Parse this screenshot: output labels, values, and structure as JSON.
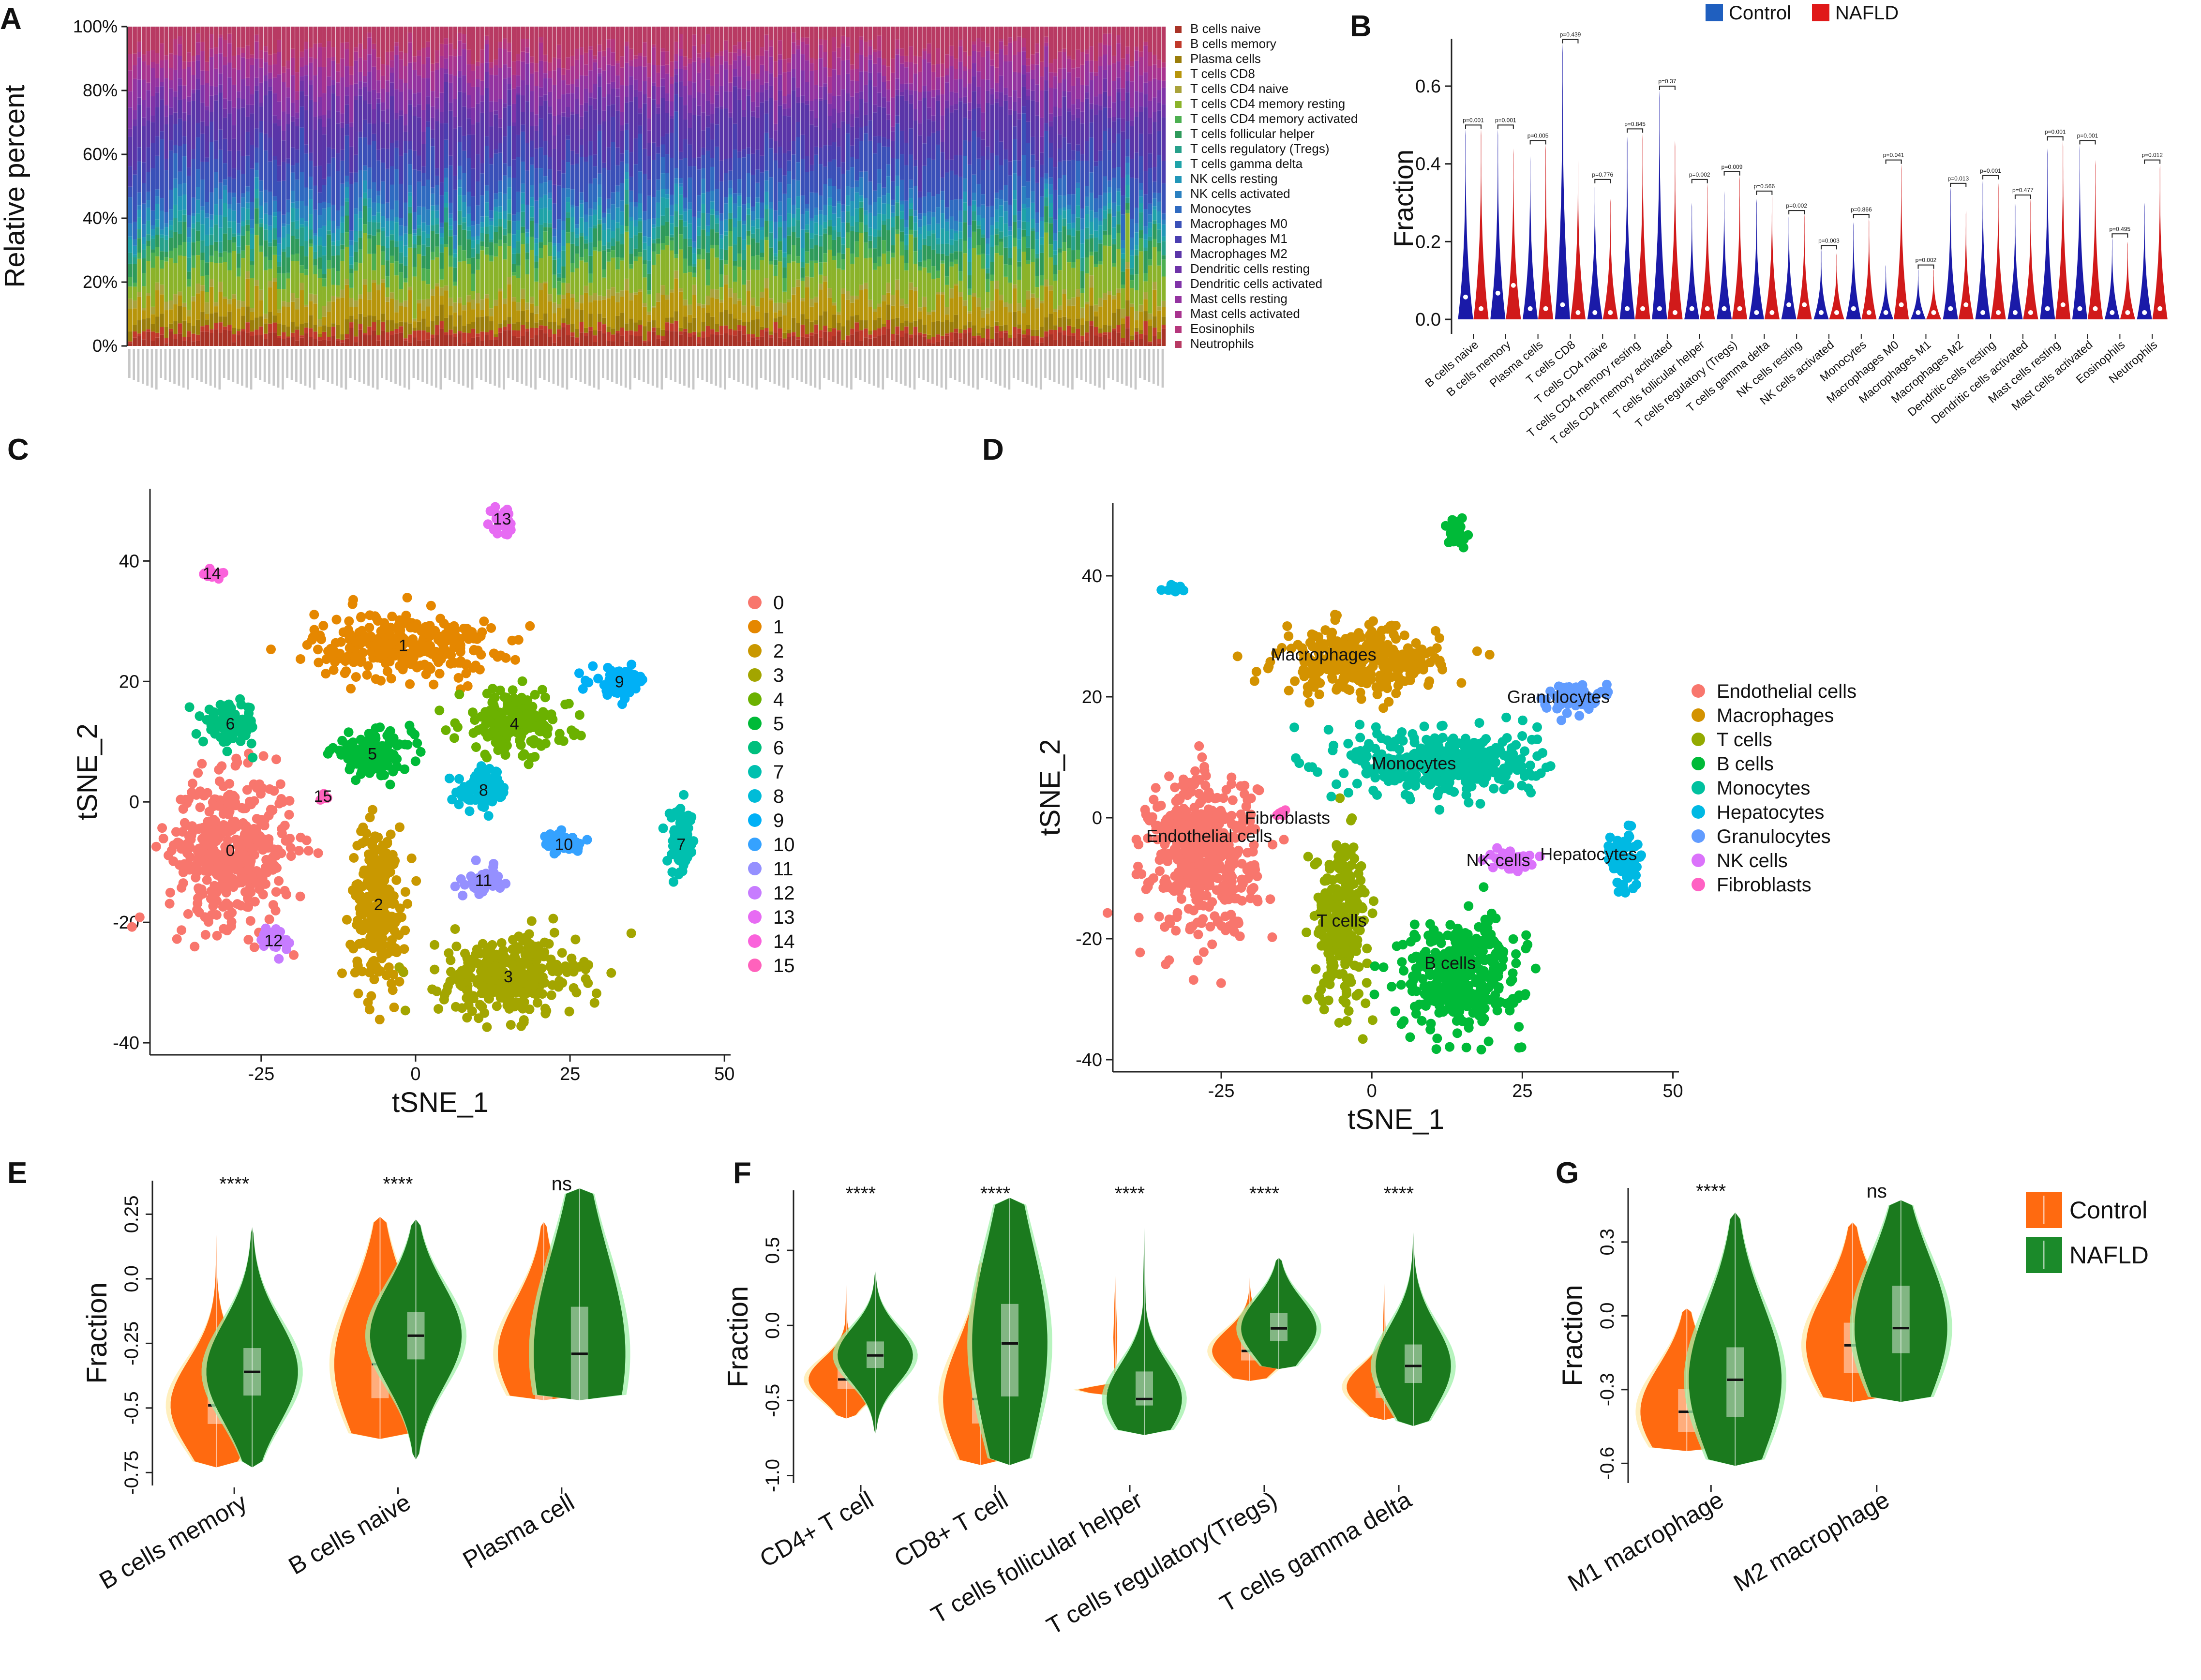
{
  "chart_data": [
    {
      "panel": "A",
      "type": "bar",
      "subtype": "stacked-100",
      "ylabel": "Relative percent",
      "yticks": [
        "0%",
        "20%",
        "40%",
        "60%",
        "80%",
        "100%"
      ],
      "ylim": [
        0,
        100
      ],
      "n_samples": 230,
      "legend": [
        {
          "name": "B cells naive",
          "color": "#a93226",
          "mean": 3
        },
        {
          "name": "B cells memory",
          "color": "#c0392b",
          "mean": 2
        },
        {
          "name": "Plasma cells",
          "color": "#9a7d0a",
          "mean": 3
        },
        {
          "name": "T cells CD8",
          "color": "#b7950b",
          "mean": 6
        },
        {
          "name": "T cells CD4 naive",
          "color": "#a9a23a",
          "mean": 2
        },
        {
          "name": "T cells CD4 memory resting",
          "color": "#8bb32a",
          "mean": 9
        },
        {
          "name": "T cells CD4 memory activated",
          "color": "#4caf50",
          "mean": 3
        },
        {
          "name": "T cells follicular helper",
          "color": "#2e9a5a",
          "mean": 4
        },
        {
          "name": "T cells regulatory (Tregs)",
          "color": "#26a08a",
          "mean": 3
        },
        {
          "name": "T cells gamma delta",
          "color": "#1fa3a8",
          "mean": 3
        },
        {
          "name": "NK cells resting",
          "color": "#2196b8",
          "mean": 3
        },
        {
          "name": "NK cells activated",
          "color": "#2a80c0",
          "mean": 3
        },
        {
          "name": "Monocytes",
          "color": "#2f6ac0",
          "mean": 5
        },
        {
          "name": "Macrophages M0",
          "color": "#3a50b8",
          "mean": 9
        },
        {
          "name": "Macrophages M1",
          "color": "#4a3eb0",
          "mean": 5
        },
        {
          "name": "Macrophages M2",
          "color": "#5a35a8",
          "mean": 10
        },
        {
          "name": "Dendritic cells resting",
          "color": "#6e33a8",
          "mean": 3
        },
        {
          "name": "Dendritic cells activated",
          "color": "#8033a8",
          "mean": 4
        },
        {
          "name": "Mast cells resting",
          "color": "#9433a0",
          "mean": 6
        },
        {
          "name": "Mast cells activated",
          "color": "#a8338f",
          "mean": 4
        },
        {
          "name": "Eosinophils",
          "color": "#b5367c",
          "mean": 3
        },
        {
          "name": "Neutrophils",
          "color": "#b83a63",
          "mean": 7
        }
      ]
    },
    {
      "panel": "B",
      "type": "violin",
      "ylabel": "Fraction",
      "ylim": [
        0,
        0.7
      ],
      "yticks": [
        "0.0",
        "0.2",
        "0.4",
        "0.6"
      ],
      "legend": [
        {
          "name": "Control",
          "color": "#1f5fbf"
        },
        {
          "name": "NAFLD",
          "color": "#e01919"
        }
      ],
      "categories": [
        "B cells naive",
        "B cells memory",
        "Plasma cells",
        "T cells CD8",
        "T cells CD4 naive",
        "T cells CD4 memory resting",
        "T cells CD4 memory activated",
        "T cells follicular helper",
        "T cells regulatory (Tregs)",
        "T cells gamma delta",
        "NK cells resting",
        "NK cells activated",
        "Monocytes",
        "Macrophages M0",
        "Macrophages M1",
        "Macrophages M2",
        "Dendritic cells resting",
        "Dendritic cells activated",
        "Mast cells resting",
        "Mast cells activated",
        "Eosinophils",
        "Neutrophils"
      ],
      "pvalues": [
        "p=0.001",
        "p=0.001",
        "p=0.005",
        "p=0.439",
        "p=0.776",
        "p=0.845",
        "p=0.37",
        "p=0.002",
        "p=0.009",
        "p=0.566",
        "p=0.002",
        "p=0.003",
        "p=0.866",
        "p=0.041",
        "p=0.002",
        "p=0.013",
        "p=0.001",
        "p=0.477",
        "p=0.001",
        "p=0.001",
        "p=0.495",
        "p=0.012"
      ],
      "control_max": [
        0.49,
        0.49,
        0.42,
        0.71,
        0.35,
        0.47,
        0.59,
        0.3,
        0.33,
        0.31,
        0.27,
        0.18,
        0.25,
        0.14,
        0.13,
        0.34,
        0.36,
        0.3,
        0.44,
        0.45,
        0.21,
        0.3
      ],
      "nafld_max": [
        0.49,
        0.44,
        0.45,
        0.41,
        0.31,
        0.48,
        0.46,
        0.35,
        0.37,
        0.32,
        0.27,
        0.17,
        0.26,
        0.4,
        0.13,
        0.28,
        0.35,
        0.31,
        0.46,
        0.41,
        0.2,
        0.4
      ],
      "control_median": [
        0.05,
        0.06,
        0.02,
        0.03,
        0.01,
        0.02,
        0.02,
        0.02,
        0.02,
        0.01,
        0.03,
        0.01,
        0.02,
        0.01,
        0.01,
        0.02,
        0.01,
        0.01,
        0.02,
        0.02,
        0.01,
        0.01
      ],
      "nafld_median": [
        0.02,
        0.08,
        0.02,
        0.01,
        0.01,
        0.02,
        0.01,
        0.02,
        0.02,
        0.01,
        0.03,
        0.01,
        0.01,
        0.03,
        0.01,
        0.03,
        0.01,
        0.01,
        0.03,
        0.02,
        0.01,
        0.02
      ]
    },
    {
      "panel": "C",
      "type": "scatter",
      "xlabel": "tSNE_1",
      "ylabel": "tSNE_2",
      "xlim": [
        -43,
        51
      ],
      "ylim": [
        -42,
        52
      ],
      "xticks": [
        -25,
        0,
        25,
        50
      ],
      "yticks": [
        -40,
        -20,
        0,
        20,
        40
      ],
      "xtick_labels": [
        "-25",
        "0",
        "25",
        "50"
      ],
      "ytick_labels": [
        "-40",
        "-20",
        "0",
        "20",
        "40"
      ],
      "clusters": [
        {
          "label": "0",
          "color": "#F8766D",
          "x": -30,
          "y": -8,
          "sx": 9,
          "sy": 11,
          "n": 420
        },
        {
          "label": "1",
          "color": "#E58700",
          "x": -2,
          "y": 26,
          "sx": 13,
          "sy": 5,
          "n": 300
        },
        {
          "label": "2",
          "color": "#C99800",
          "x": -6,
          "y": -17,
          "sx": 4,
          "sy": 12,
          "n": 240
        },
        {
          "label": "3",
          "color": "#A3A500",
          "x": 15,
          "y": -29,
          "sx": 10,
          "sy": 6,
          "n": 320
        },
        {
          "label": "4",
          "color": "#6BB100",
          "x": 16,
          "y": 13,
          "sx": 8,
          "sy": 5,
          "n": 180
        },
        {
          "label": "5",
          "color": "#00BA38",
          "x": -7,
          "y": 8,
          "sx": 6,
          "sy": 3,
          "n": 130
        },
        {
          "label": "6",
          "color": "#00BF7D",
          "x": -30,
          "y": 13,
          "sx": 4,
          "sy": 3,
          "n": 90
        },
        {
          "label": "7",
          "color": "#00C0AF",
          "x": 43,
          "y": -7,
          "sx": 2,
          "sy": 5,
          "n": 70
        },
        {
          "label": "8",
          "color": "#00BCD8",
          "x": 11,
          "y": 2,
          "sx": 4,
          "sy": 3,
          "n": 80
        },
        {
          "label": "9",
          "color": "#00B0F6",
          "x": 33,
          "y": 20,
          "sx": 4,
          "sy": 2,
          "n": 70
        },
        {
          "label": "10",
          "color": "#35A2FF",
          "x": 24,
          "y": -7,
          "sx": 3,
          "sy": 1.5,
          "n": 45
        },
        {
          "label": "11",
          "color": "#9590FF",
          "x": 11,
          "y": -13,
          "sx": 2.5,
          "sy": 2,
          "n": 40
        },
        {
          "label": "12",
          "color": "#C77CFF",
          "x": -23,
          "y": -23,
          "sx": 2,
          "sy": 2,
          "n": 28
        },
        {
          "label": "13",
          "color": "#E76BF3",
          "x": 14,
          "y": 47,
          "sx": 1.5,
          "sy": 2,
          "n": 28
        },
        {
          "label": "14",
          "color": "#FA62DB",
          "x": -33,
          "y": 38,
          "sx": 2,
          "sy": 0.5,
          "n": 18
        },
        {
          "label": "15",
          "color": "#FF62BC",
          "x": -15,
          "y": 1,
          "sx": 0.8,
          "sy": 0.8,
          "n": 5
        }
      ]
    },
    {
      "panel": "D",
      "type": "scatter",
      "xlabel": "tSNE_1",
      "ylabel": "tSNE_2",
      "xlim": [
        -43,
        51
      ],
      "ylim": [
        -42,
        52
      ],
      "xticks": [
        -25,
        0,
        25,
        50
      ],
      "yticks": [
        -40,
        -20,
        0,
        20,
        40
      ],
      "xtick_labels": [
        "-25",
        "0",
        "25",
        "50"
      ],
      "ytick_labels": [
        "-40",
        "-20",
        "0",
        "20",
        "40"
      ],
      "clusters": [
        {
          "label": "Endothelial cells",
          "color": "#F8766D",
          "x": -28,
          "y": -6,
          "sx": 8,
          "sy": 12,
          "n": 460
        },
        {
          "label": "Macrophages",
          "color": "#D39200",
          "x": -2,
          "y": 26,
          "sx": 12,
          "sy": 5,
          "n": 300
        },
        {
          "label": "T cells",
          "color": "#93AA00",
          "x": -5,
          "y": -17,
          "sx": 4,
          "sy": 12,
          "n": 240
        },
        {
          "label": "B cells",
          "color": "#00BA38",
          "x": 15,
          "y": -26,
          "sx": 9,
          "sy": 8,
          "n": 360
        },
        {
          "label": "Monocytes",
          "color": "#00C19F",
          "x": 12,
          "y": 9,
          "sx": 14,
          "sy": 5,
          "n": 380
        },
        {
          "label": "Hepatocytes",
          "color": "#00B9E3",
          "x": 42,
          "y": -7,
          "sx": 2,
          "sy": 5,
          "n": 70
        },
        {
          "label": "Granulocytes",
          "color": "#619CFF",
          "x": 33,
          "y": 20,
          "sx": 4,
          "sy": 2,
          "n": 70
        },
        {
          "label": "NK cells",
          "color": "#DB72FB",
          "x": 23,
          "y": -7,
          "sx": 3,
          "sy": 1.5,
          "n": 45
        },
        {
          "label": "Fibroblasts",
          "color": "#FF61C3",
          "x": -15,
          "y": 1,
          "sx": 0.8,
          "sy": 0.8,
          "n": 5
        }
      ],
      "extra_clusters": [
        {
          "color": "#00BA38",
          "x": 14,
          "y": 47,
          "sx": 1.5,
          "sy": 2,
          "n": 28
        },
        {
          "color": "#00B9E3",
          "x": -33,
          "y": 38,
          "sx": 2,
          "sy": 0.5,
          "n": 18
        }
      ],
      "labels": [
        {
          "text": "Macrophages",
          "x": -8,
          "y": 26
        },
        {
          "text": "Granulocytes",
          "x": 31,
          "y": 19
        },
        {
          "text": "Monocytes",
          "x": 7,
          "y": 8
        },
        {
          "text": "Fibroblasts",
          "x": -14,
          "y": -1
        },
        {
          "text": "Endothelial cells",
          "x": -27,
          "y": -4
        },
        {
          "text": "NK cells",
          "x": 21,
          "y": -8
        },
        {
          "text": "Hepatocytes",
          "x": 36,
          "y": -7
        },
        {
          "text": "T cells",
          "x": -5,
          "y": -18
        },
        {
          "text": "B cells",
          "x": 13,
          "y": -25
        }
      ]
    },
    {
      "panel": "E",
      "type": "violin",
      "ylabel": "Fraction",
      "ylim": [
        -0.8,
        0.38
      ],
      "yticks": [
        -0.75,
        -0.5,
        -0.25,
        0.0,
        0.25
      ],
      "ytick_labels": [
        "-0.75",
        "-0.5",
        "-0.25",
        "0.0",
        "0.25"
      ],
      "categories": [
        "B cells memory",
        "B cells naive",
        "Plasma cell"
      ],
      "significance": [
        "****",
        "****",
        "ns"
      ],
      "control": [
        {
          "median": -0.49,
          "q1": -0.56,
          "q3": -0.4,
          "min": -0.73,
          "max": 0.17
        },
        {
          "median": -0.33,
          "q1": -0.46,
          "q3": -0.21,
          "min": -0.62,
          "max": 0.24
        },
        {
          "median": -0.29,
          "q1": -0.47,
          "q3": -0.28,
          "min": -0.47,
          "max": 0.22
        }
      ],
      "nafld": [
        {
          "median": -0.36,
          "q1": -0.45,
          "q3": -0.27,
          "min": -0.73,
          "max": 0.2
        },
        {
          "median": -0.22,
          "q1": -0.31,
          "q3": -0.13,
          "min": -0.7,
          "max": 0.23
        },
        {
          "median": -0.29,
          "q1": -0.47,
          "q3": -0.11,
          "min": -0.47,
          "max": 0.35
        }
      ]
    },
    {
      "panel": "F",
      "type": "violin",
      "ylabel": "Fraction",
      "ylim": [
        -1.05,
        0.9
      ],
      "yticks": [
        -1.0,
        -0.5,
        0.0,
        0.5
      ],
      "ytick_labels": [
        "-1.0",
        "-0.5",
        "0.0",
        "0.5"
      ],
      "categories": [
        "CD4+ T cell",
        "CD8+ T cell",
        "T cells follicular helper",
        "T cells regulatory(Tregs)",
        "T cells gamma delta"
      ],
      "significance": [
        "****",
        "****",
        "****",
        "****",
        "****"
      ],
      "control": [
        {
          "median": -0.36,
          "q1": -0.42,
          "q3": -0.29,
          "min": -0.62,
          "max": 0.27
        },
        {
          "median": -0.49,
          "q1": -0.65,
          "q3": -0.31,
          "min": -0.93,
          "max": 0.43
        },
        {
          "median": -0.43,
          "q1": -0.44,
          "q3": -0.42,
          "min": -0.47,
          "max": 0.33
        },
        {
          "median": -0.17,
          "q1": -0.23,
          "q3": -0.1,
          "min": -0.37,
          "max": 0.32
        },
        {
          "median": -0.41,
          "q1": -0.48,
          "q3": -0.35,
          "min": -0.63,
          "max": 0.28
        }
      ],
      "nafld": [
        {
          "median": -0.2,
          "q1": -0.28,
          "q3": -0.11,
          "min": -0.72,
          "max": 0.36
        },
        {
          "median": -0.12,
          "q1": -0.47,
          "q3": 0.14,
          "min": -0.93,
          "max": 0.85
        },
        {
          "median": -0.49,
          "q1": -0.53,
          "q3": -0.31,
          "min": -0.73,
          "max": 0.65
        },
        {
          "median": -0.02,
          "q1": -0.1,
          "q3": 0.08,
          "min": -0.29,
          "max": 0.45
        },
        {
          "median": -0.27,
          "q1": -0.38,
          "q3": -0.13,
          "min": -0.67,
          "max": 0.62
        }
      ]
    },
    {
      "panel": "G",
      "type": "violin",
      "ylabel": "Fraction",
      "ylim": [
        -0.68,
        0.52
      ],
      "yticks": [
        -0.6,
        -0.3,
        0.0,
        0.3
      ],
      "ytick_labels": [
        "-0.6",
        "-0.3",
        "0.0",
        "0.3"
      ],
      "categories": [
        "M1 macrophage",
        "M2 macrophage"
      ],
      "significance": [
        "****",
        "ns"
      ],
      "control": [
        {
          "median": -0.39,
          "q1": -0.47,
          "q3": -0.3,
          "min": -0.55,
          "max": 0.03
        },
        {
          "median": -0.12,
          "q1": -0.23,
          "q3": -0.03,
          "min": -0.35,
          "max": 0.38
        }
      ],
      "nafld": [
        {
          "median": -0.26,
          "q1": -0.41,
          "q3": -0.13,
          "min": -0.61,
          "max": 0.42
        },
        {
          "median": -0.05,
          "q1": -0.15,
          "q3": 0.12,
          "min": -0.35,
          "max": 0.47
        }
      ],
      "legend": [
        {
          "name": "Control",
          "color": "#ff6a10"
        },
        {
          "name": "NAFLD",
          "color": "#1b8a2a"
        }
      ]
    }
  ]
}
